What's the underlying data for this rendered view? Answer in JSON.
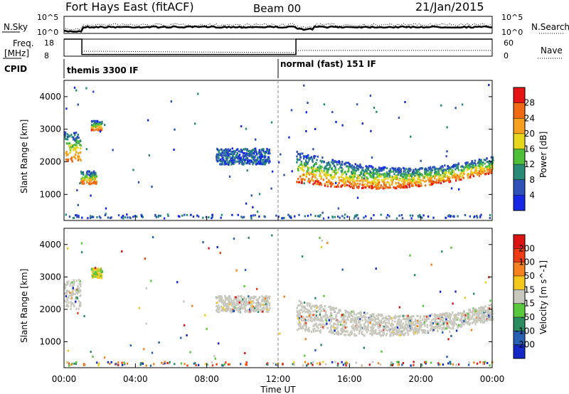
{
  "header": {
    "title": "Fort Hays East (fitACF)",
    "beam": "Beam 00",
    "date": "21/Jan/2015"
  },
  "noise_panel": {
    "left_label": "N.Sky",
    "right_label": "N.Search",
    "left_ticks": [
      "10^5",
      "10^0"
    ],
    "right_ticks": [
      "10^5",
      "10^0"
    ]
  },
  "freq_panel": {
    "left_label": "Freq.",
    "left_unit": "[MHz]",
    "left_ticks": [
      "18",
      "8"
    ],
    "right_label": "Nave",
    "right_ticks": [
      "60",
      "0"
    ]
  },
  "cpid": {
    "label": "CPID",
    "modes": [
      {
        "name": "themis 3300 IF",
        "start_hour": 0
      },
      {
        "name": "normal (fast) 151 IF",
        "start_hour": 12
      }
    ]
  },
  "chart_data": [
    {
      "type": "heatmap",
      "title": "",
      "ylabel": "Slant Range [km]",
      "xlabel": "",
      "ylim": [
        200,
        4500
      ],
      "yticks": [
        "4000",
        "3000",
        "2000",
        "1000"
      ],
      "colorbar": {
        "label": "Power [dB]",
        "ticks": [
          "28",
          "24",
          "20",
          "16",
          "12",
          "8",
          "4"
        ],
        "colors": [
          "#1428e6",
          "#2e52b8",
          "#2a8a78",
          "#4fbf3a",
          "#e6d61e",
          "#f5a01e",
          "#f06a14",
          "#e61414"
        ]
      },
      "regions": [
        {
          "t": [
            0.0,
            0.9
          ],
          "range": [
            2000,
            2900
          ],
          "dominant": "high"
        },
        {
          "t": [
            1.5,
            2.1
          ],
          "range": [
            2950,
            3250
          ],
          "dominant": "high"
        },
        {
          "t": [
            0.9,
            1.8
          ],
          "range": [
            1300,
            1700
          ],
          "dominant": "high"
        },
        {
          "t": [
            8.5,
            11.5
          ],
          "range": [
            1900,
            2400
          ],
          "dominant": "low"
        },
        {
          "t": [
            13.0,
            24.0
          ],
          "range": [
            1100,
            2600
          ],
          "dominant": "high"
        }
      ]
    },
    {
      "type": "heatmap",
      "title": "",
      "ylabel": "Slant Range [km]",
      "xlabel": "Time UT",
      "ylim": [
        200,
        4500
      ],
      "yticks": [
        "4000",
        "3000",
        "2000",
        "1000"
      ],
      "xticks": [
        "00:00",
        "04:00",
        "08:00",
        "12:00",
        "16:00",
        "20:00",
        "00:00"
      ],
      "xlim_hours": [
        0,
        24
      ],
      "colorbar": {
        "label": "Velocity [m s^-1]",
        "ticks": [
          "200",
          "100",
          "50",
          "15",
          "-15",
          "-50",
          "-100",
          "-200"
        ],
        "colors": [
          "#1428c8",
          "#2860b4",
          "#2a8a60",
          "#5ac83c",
          "#c8c8be",
          "#f5c81e",
          "#f5821e",
          "#f03c14",
          "#dc1414"
        ]
      },
      "regions": [
        {
          "t": [
            0.0,
            0.9
          ],
          "range": [
            2000,
            2900
          ],
          "dominant": "ground-scatter"
        },
        {
          "t": [
            1.5,
            2.1
          ],
          "range": [
            2950,
            3250
          ],
          "dominant": "positive"
        },
        {
          "t": [
            8.5,
            11.5
          ],
          "range": [
            1900,
            2400
          ],
          "dominant": "ground-scatter"
        },
        {
          "t": [
            13.0,
            24.0
          ],
          "range": [
            1100,
            2600
          ],
          "dominant": "ground-scatter"
        }
      ]
    }
  ]
}
